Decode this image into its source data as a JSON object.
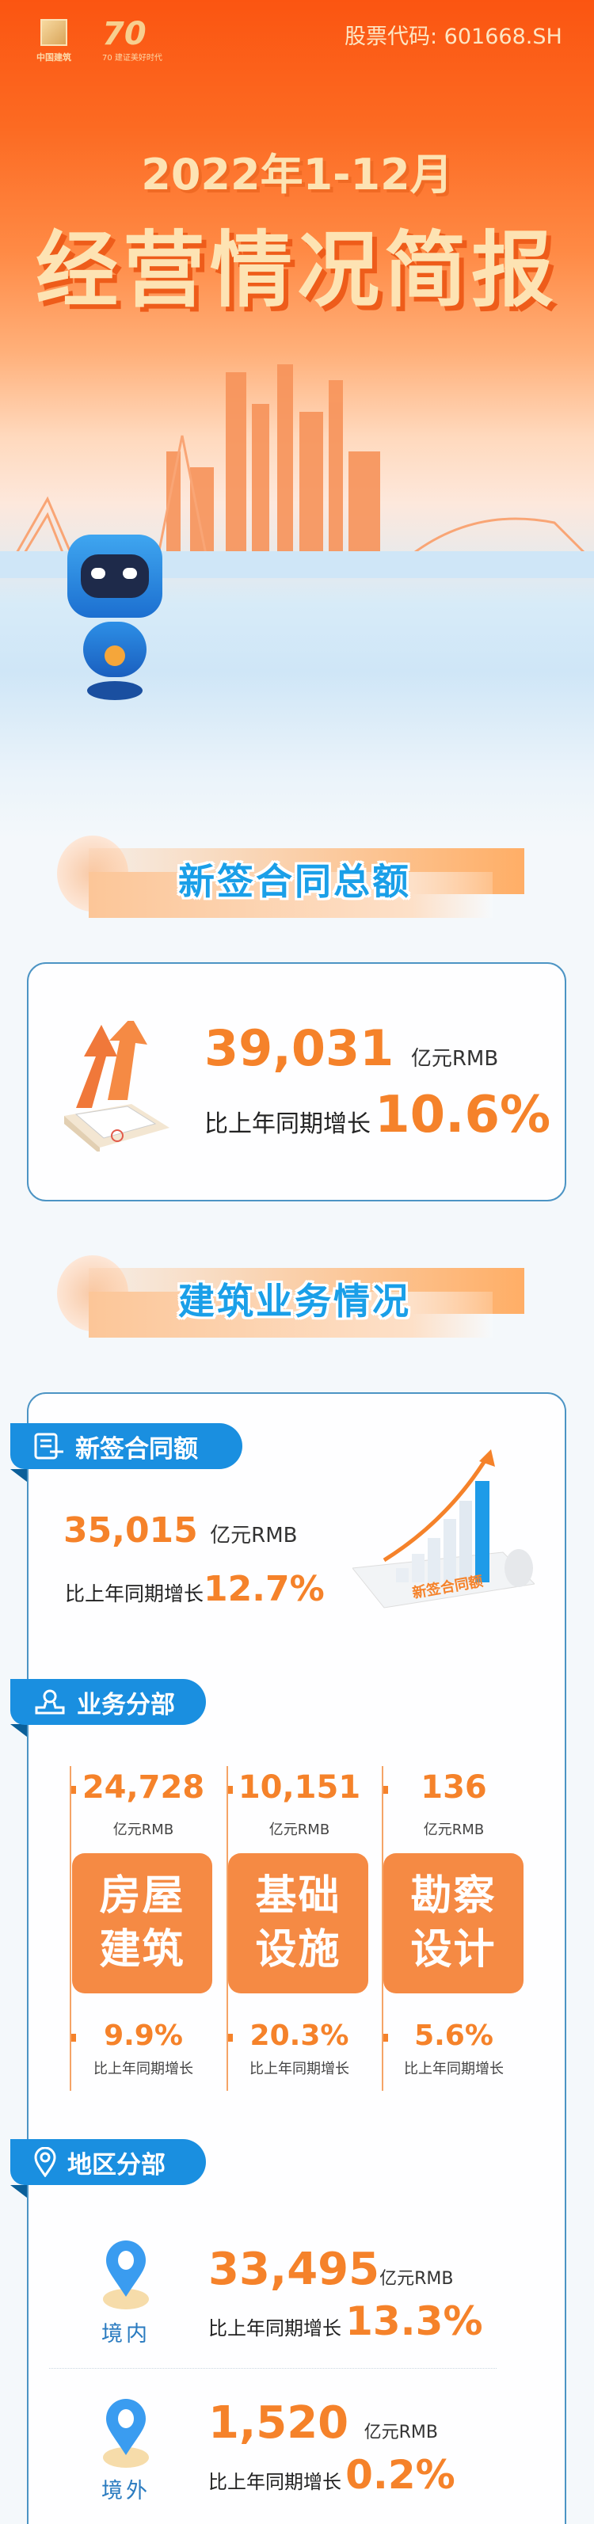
{
  "header": {
    "logo_left_text": "中国建筑",
    "logo_right_text": "70 建证美好时代",
    "stock_code": "股票代码: 601668.SH",
    "period": "2022年1-12月",
    "title": "经营情况简报"
  },
  "colors": {
    "accent_orange": "#f5822a",
    "accent_blue": "#1a9fe8",
    "tag_blue": "#1a8fe0",
    "box_orange": "#f58a44"
  },
  "total": {
    "section_title": "新签合同总额",
    "value": "39,031",
    "unit": "亿元RMB",
    "growth_label": "比上年同期增长",
    "growth": "10.6%"
  },
  "construction": {
    "section_title": "建筑业务情况",
    "new_contracts": {
      "tag": "新签合同额",
      "icon": "document-pen-icon",
      "value": "35,015",
      "unit": "亿元RMB",
      "growth_label": "比上年同期增长",
      "growth": "12.7%",
      "chart_caption": "新签合同额"
    },
    "by_business": {
      "tag": "业务分部",
      "icon": "stamp-icon",
      "items": [
        {
          "value": "24,728",
          "unit": "亿元RMB",
          "line1": "房屋",
          "line2": "建筑",
          "growth": "9.9%",
          "growth_label": "比上年同期增长"
        },
        {
          "value": "10,151",
          "unit": "亿元RMB",
          "line1": "基础",
          "line2": "设施",
          "growth": "20.3%",
          "growth_label": "比上年同期增长"
        },
        {
          "value": "136",
          "unit": "亿元RMB",
          "line1": "勘察",
          "line2": "设计",
          "growth": "5.6%",
          "growth_label": "比上年同期增长"
        }
      ]
    },
    "by_region": {
      "tag": "地区分部",
      "icon": "location-pin-icon",
      "items": [
        {
          "label": "境内",
          "value": "33,495",
          "unit": "亿元RMB",
          "growth_label": "比上年同期增长",
          "growth": "13.3%"
        },
        {
          "label": "境外",
          "value": "1,520",
          "unit": "亿元RMB",
          "growth_label": "比上年同期增长",
          "growth": "0.2%"
        }
      ]
    }
  }
}
